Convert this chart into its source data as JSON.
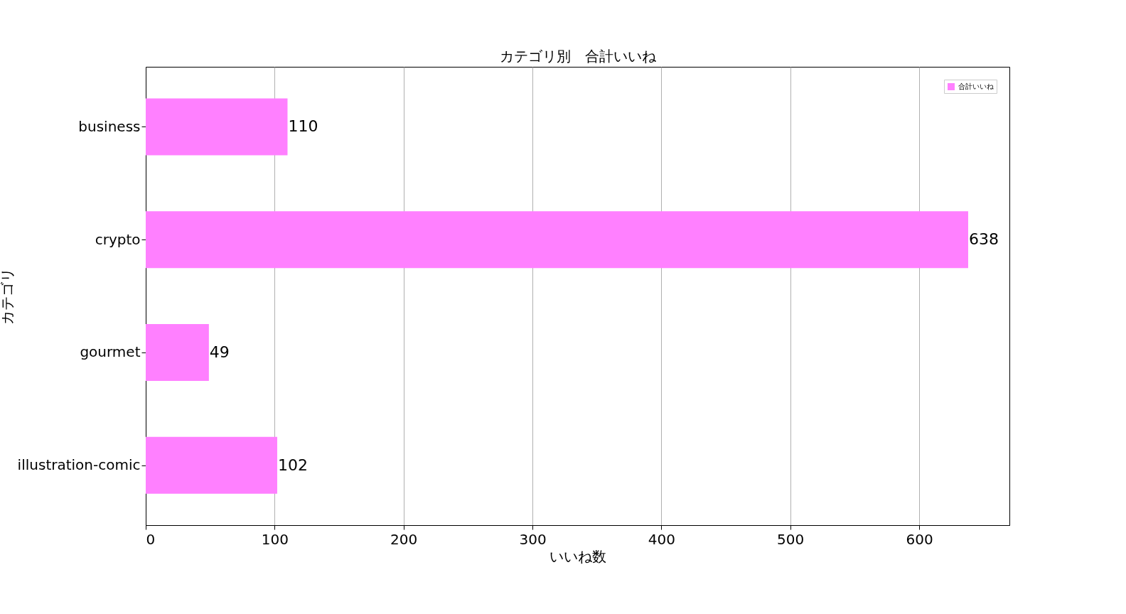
{
  "chart_data": {
    "type": "bar",
    "orientation": "horizontal",
    "title": "カテゴリ別　合計いいね",
    "xlabel": "いいね数",
    "ylabel": "カテゴリ",
    "categories": [
      "business",
      "crypto",
      "gourmet",
      "illustration-comic"
    ],
    "series": [
      {
        "name": "合計いいね",
        "color": "#ff80ff",
        "values": [
          110,
          638,
          49,
          102
        ]
      }
    ],
    "xlim": [
      0,
      670
    ],
    "xticks": [
      0,
      100,
      200,
      300,
      400,
      500,
      600
    ],
    "grid": "x",
    "legend": "top right",
    "data_labels": true
  }
}
